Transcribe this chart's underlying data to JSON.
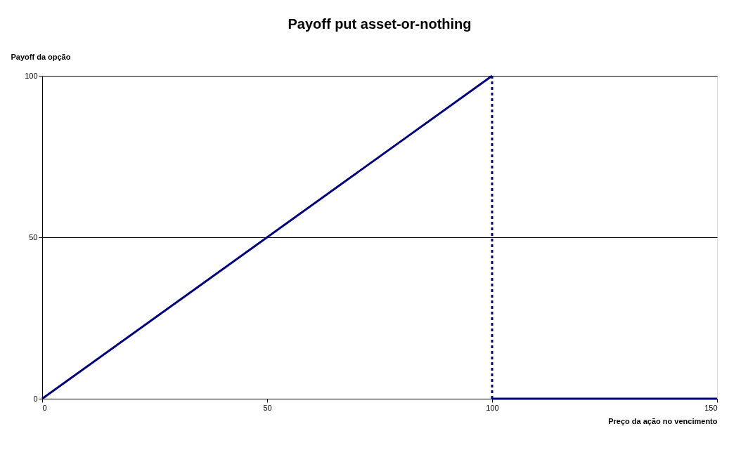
{
  "chart_data": {
    "type": "line",
    "title": "Payoff put asset-or-nothing",
    "xlabel": "Preço da ação no vencimento",
    "ylabel": "Payoff da opção",
    "series": [
      {
        "color": "#000080",
        "x": [
          0,
          100
        ],
        "values": [
          0,
          100
        ],
        "line_style": "solid"
      },
      {
        "color": "#000080",
        "x": [
          100,
          100
        ],
        "values": [
          100,
          0
        ],
        "line_style": "dashed"
      },
      {
        "color": "#000080",
        "x": [
          100,
          150
        ],
        "values": [
          0,
          0
        ],
        "line_style": "solid"
      }
    ],
    "xlim": [
      0,
      150
    ],
    "xticks": [
      0,
      50,
      100,
      150
    ],
    "ylim": [
      0,
      100
    ],
    "yticks": [
      0,
      50,
      100
    ],
    "grid": "y",
    "marker": "none"
  }
}
